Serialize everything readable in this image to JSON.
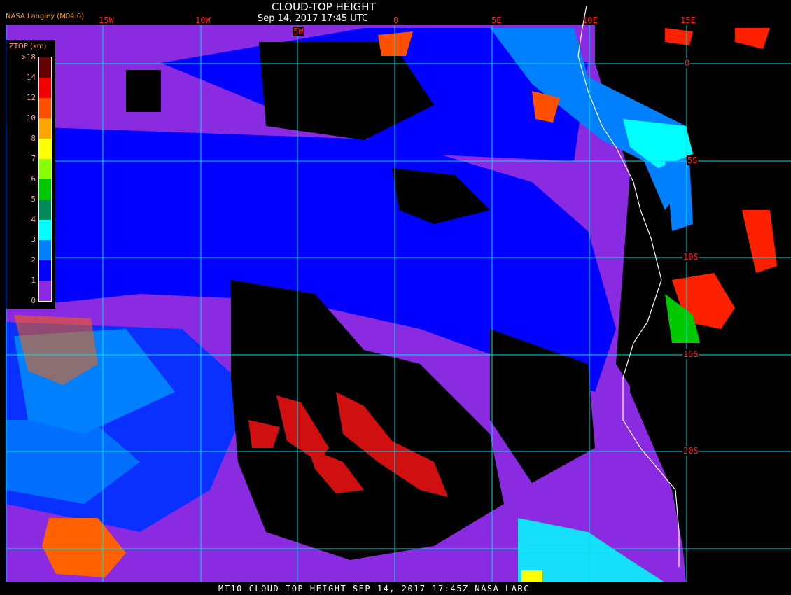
{
  "header": {
    "title": "CLOUD-TOP HEIGHT",
    "subtitle": "Sep 14, 2017 17:45 UTC",
    "credit": "NASA Langley (M04.0)"
  },
  "grid": {
    "longitude_labels": [
      "15W",
      "10W",
      "5W",
      "0",
      "5E",
      "10E",
      "15E"
    ],
    "latitude_labels": [
      "0",
      "5S",
      "10S",
      "15S",
      "20S"
    ]
  },
  "legend": {
    "title": "ZTOP (km)",
    "ticks": [
      ">18",
      "14",
      "12",
      "10",
      "8",
      "7",
      "6",
      "5",
      "4",
      "3",
      "2",
      "1",
      "0"
    ],
    "colors": [
      "#640000",
      "#f00000",
      "#ff5000",
      "#ffa500",
      "#ffff00",
      "#88ff00",
      "#00c800",
      "#008c5a",
      "#00ffff",
      "#0080ff",
      "#0000ff",
      "#8a2be2"
    ]
  },
  "footer": "MT10   CLOUD-TOP HEIGHT   SEP 14, 2017 17:45Z   NASA LARC",
  "colors": {
    "grid": "#00e0e0",
    "coastline": "#ffffff",
    "labels": "#ff2020"
  }
}
